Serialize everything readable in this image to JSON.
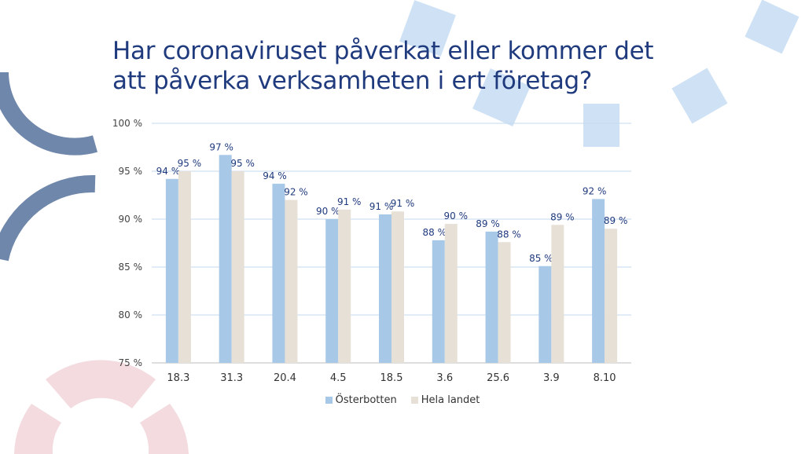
{
  "slide": {
    "title_line1": "Har coronaviruset påverkat eller kommer det",
    "title_line2": "att påverka verksamheten i ert företag?"
  },
  "chart_data": {
    "type": "bar",
    "title": "",
    "xlabel": "",
    "ylabel": "",
    "categories": [
      "18.3",
      "31.3",
      "20.4",
      "4.5",
      "18.5",
      "3.6",
      "25.6",
      "3.9",
      "8.10"
    ],
    "ylim": [
      75,
      100
    ],
    "yticks": [
      75,
      80,
      85,
      90,
      95,
      100
    ],
    "ytick_labels": [
      "75 %",
      "80 %",
      "85 %",
      "90 %",
      "95 %",
      "100 %"
    ],
    "grid": true,
    "legend_position": "bottom",
    "series": [
      {
        "name": "Österbotten",
        "color": "#a8c8e8",
        "values": [
          94.2,
          96.7,
          93.7,
          90.0,
          90.5,
          87.8,
          88.7,
          85.1,
          92.1
        ],
        "labels": [
          "94 %",
          "97 %",
          "94 %",
          "90 %",
          "91 %",
          "88 %",
          "89 %",
          "85 %",
          "92 %"
        ]
      },
      {
        "name": "Hela landet",
        "color": "#e6e0d6",
        "values": [
          95.0,
          95.0,
          92.0,
          91.0,
          90.8,
          89.5,
          87.6,
          89.4,
          89.0
        ],
        "labels": [
          "95 %",
          "95 %",
          "92 %",
          "91 %",
          "91 %",
          "90 %",
          "88 %",
          "89 %",
          "89 %"
        ]
      }
    ]
  },
  "decor": {
    "arc_color": "#6f87aa",
    "square_color": "#cfe2f5",
    "pink_color": "#f3dbe0"
  }
}
